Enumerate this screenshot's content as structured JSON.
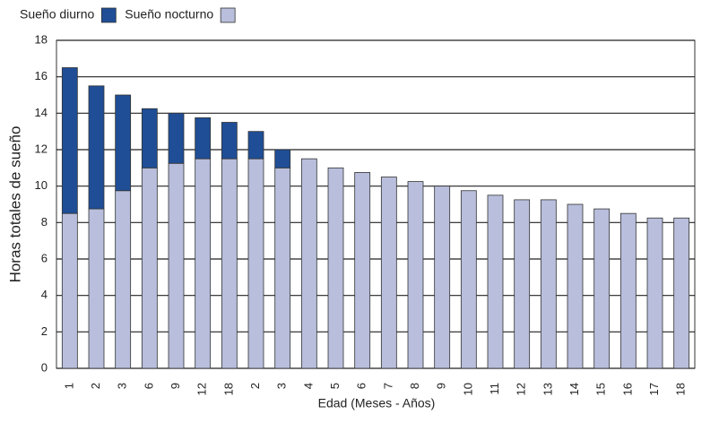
{
  "chart_data": {
    "type": "stacked-bar",
    "ylabel": "Horas totales de sueño",
    "xlabel": "Edad (Meses - Años)",
    "categories": [
      "1",
      "2",
      "3",
      "6",
      "9",
      "12",
      "18",
      "2",
      "3",
      "4",
      "5",
      "6",
      "7",
      "8",
      "9",
      "10",
      "11",
      "12",
      "13",
      "14",
      "15",
      "16",
      "17",
      "18"
    ],
    "series": [
      {
        "name": "Sueño nocturno",
        "color": "#b8bedc",
        "values": [
          8.5,
          8.75,
          9.75,
          11,
          11.25,
          11.5,
          11.5,
          11.5,
          11,
          11.5,
          11,
          10.75,
          10.5,
          10.25,
          10,
          9.75,
          9.5,
          9.25,
          9.25,
          9,
          8.75,
          8.5,
          8.25,
          8.25
        ]
      },
      {
        "name": "Sueño diurno",
        "color": "#1f4e96",
        "values": [
          8,
          6.75,
          5.25,
          3.25,
          2.75,
          2.25,
          2,
          1.5,
          1,
          null,
          null,
          null,
          null,
          null,
          null,
          null,
          null,
          null,
          null,
          null,
          null,
          null,
          null,
          null
        ]
      }
    ],
    "ylim": [
      0,
      18
    ],
    "yticks": [
      0,
      2,
      4,
      6,
      8,
      10,
      12,
      14,
      16,
      18
    ],
    "grid": true
  }
}
